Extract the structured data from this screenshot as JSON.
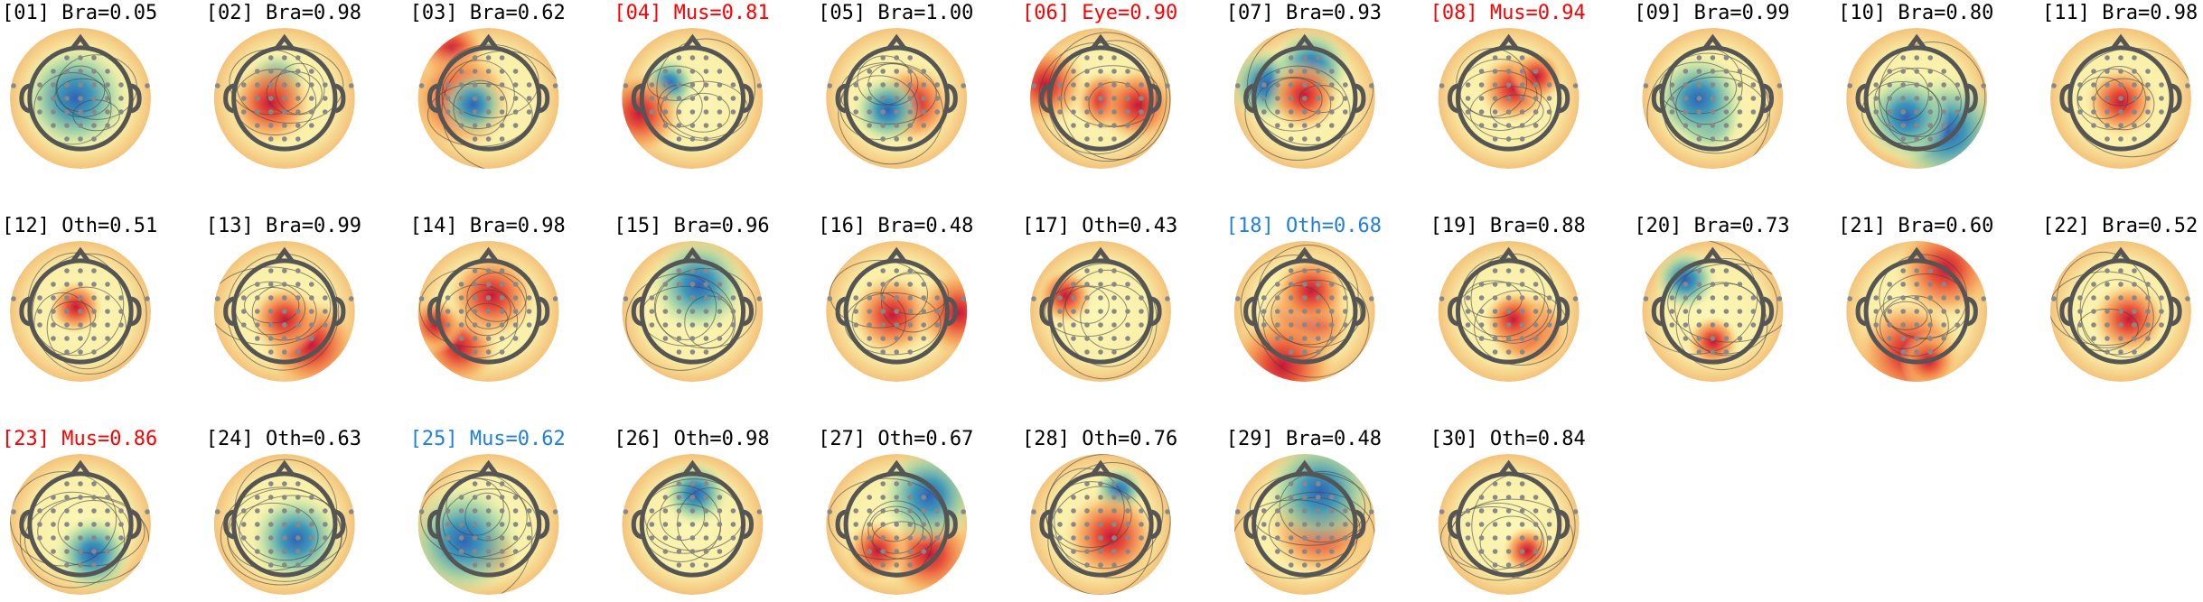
{
  "components": [
    {
      "label": "[01] Bra=0.05",
      "color": "#000000"
    },
    {
      "label": "[02] Bra=0.98",
      "color": "#000000"
    },
    {
      "label": "[03] Bra=0.62",
      "color": "#000000"
    },
    {
      "label": "[04] Mus=0.81",
      "color": "#ff0000"
    },
    {
      "label": "[05] Bra=1.00",
      "color": "#000000"
    },
    {
      "label": "[06] Eye=0.90",
      "color": "#ff0000"
    },
    {
      "label": "[07] Bra=0.93",
      "color": "#000000"
    },
    {
      "label": "[08] Mus=0.94",
      "color": "#ff0000"
    },
    {
      "label": "[09] Bra=0.99",
      "color": "#000000"
    },
    {
      "label": "[10] Bra=0.80",
      "color": "#000000"
    },
    {
      "label": "[11] Bra=0.98",
      "color": "#000000"
    },
    {
      "label": "[12] Oth=0.51",
      "color": "#000000"
    },
    {
      "label": "[13] Bra=0.99",
      "color": "#000000"
    },
    {
      "label": "[14] Bra=0.98",
      "color": "#000000"
    },
    {
      "label": "[15] Bra=0.96",
      "color": "#000000"
    },
    {
      "label": "[16] Bra=0.48",
      "color": "#000000"
    },
    {
      "label": "[17] Oth=0.43",
      "color": "#000000"
    },
    {
      "label": "[18] Oth=0.68",
      "color": "#1e7fe0"
    },
    {
      "label": "[19] Bra=0.88",
      "color": "#000000"
    },
    {
      "label": "[20] Bra=0.73",
      "color": "#000000"
    },
    {
      "label": "[21] Bra=0.60",
      "color": "#000000"
    },
    {
      "label": "[22] Bra=0.52",
      "color": "#000000"
    },
    {
      "label": "[23] Mus=0.86",
      "color": "#ff0000"
    },
    {
      "label": "[24] Oth=0.63",
      "color": "#000000"
    },
    {
      "label": "[25] Mus=0.62",
      "color": "#1e7fe0"
    },
    {
      "label": "[26] Oth=0.98",
      "color": "#000000"
    },
    {
      "label": "[27] Oth=0.67",
      "color": "#000000"
    },
    {
      "label": "[28] Oth=0.76",
      "color": "#000000"
    },
    {
      "label": "[29] Bra=0.48",
      "color": "#000000"
    },
    {
      "label": "[30] Oth=0.84",
      "color": "#000000"
    }
  ]
}
